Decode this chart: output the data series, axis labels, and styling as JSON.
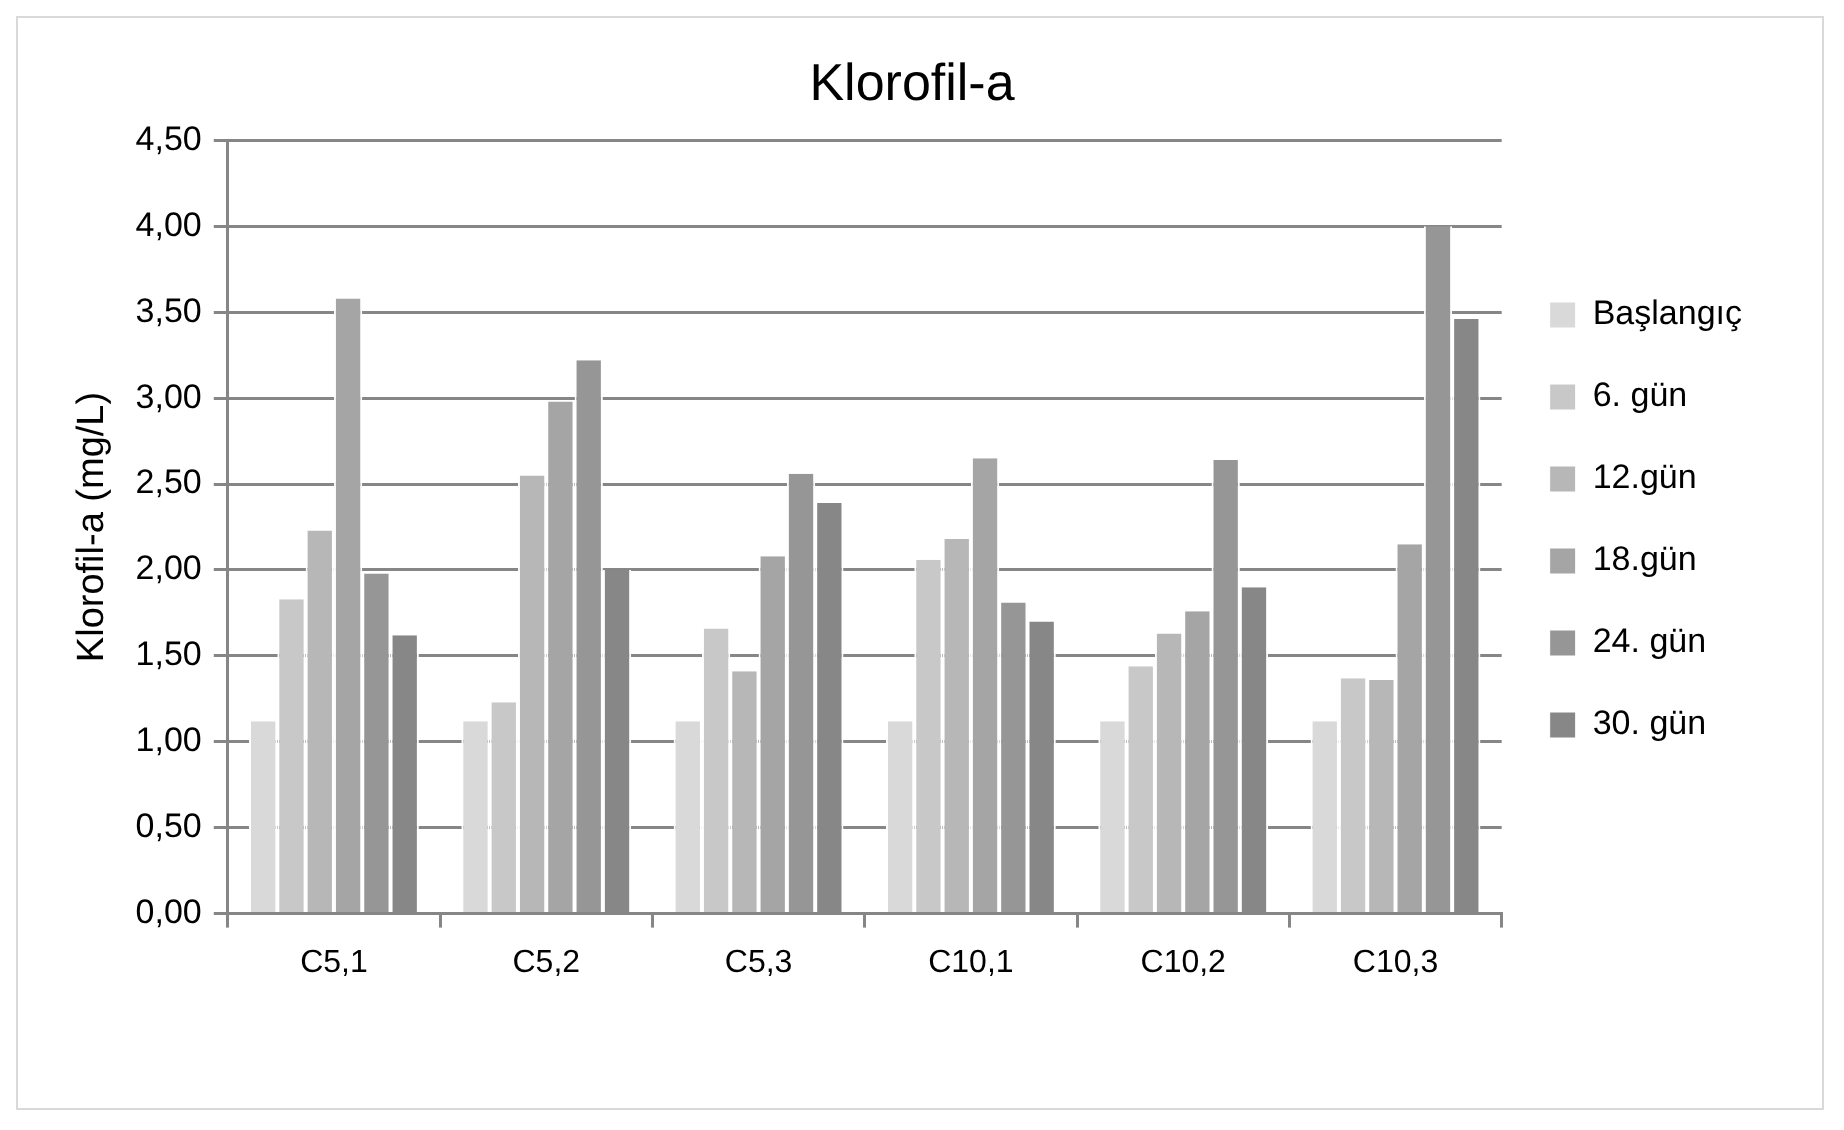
{
  "chart_data": {
    "type": "bar",
    "title": "Klorofil-a",
    "ylabel": "Klorofil-a (mg/L)",
    "categories": [
      "C5,1",
      "C5,2",
      "C5,3",
      "C10,1",
      "C10,2",
      "C10,3"
    ],
    "series": [
      {
        "name": "Başlangıç",
        "color": "#d9d9d9",
        "values": [
          1.12,
          1.12,
          1.12,
          1.12,
          1.12,
          1.12
        ]
      },
      {
        "name": "6. gün",
        "color": "#c8c8c8",
        "values": [
          1.83,
          1.23,
          1.66,
          2.06,
          1.44,
          1.37
        ]
      },
      {
        "name": "12.gün",
        "color": "#b7b7b7",
        "values": [
          2.23,
          2.55,
          1.41,
          2.18,
          1.63,
          1.36
        ]
      },
      {
        "name": "18.gün",
        "color": "#a5a5a5",
        "values": [
          3.58,
          2.98,
          2.08,
          2.65,
          1.76,
          2.15
        ]
      },
      {
        "name": "24. gün",
        "color": "#969696",
        "values": [
          1.98,
          3.22,
          2.56,
          1.81,
          2.64,
          4.0
        ]
      },
      {
        "name": "30. gün",
        "color": "#878787",
        "values": [
          1.62,
          2.0,
          2.39,
          1.7,
          1.9,
          3.46
        ]
      }
    ],
    "ylim": [
      0,
      4.5
    ],
    "yticks": [
      {
        "value": 0,
        "label": "0,00"
      },
      {
        "value": 0.5,
        "label": "0,50"
      },
      {
        "value": 1,
        "label": "1,00"
      },
      {
        "value": 1.5,
        "label": "1,50"
      },
      {
        "value": 2,
        "label": "2,00"
      },
      {
        "value": 2.5,
        "label": "2,50"
      },
      {
        "value": 3,
        "label": "3,00"
      },
      {
        "value": 3.5,
        "label": "3,50"
      },
      {
        "value": 4,
        "label": "4,00"
      },
      {
        "value": 4.5,
        "label": "4,50"
      }
    ],
    "grid": "y",
    "legend": "right"
  }
}
